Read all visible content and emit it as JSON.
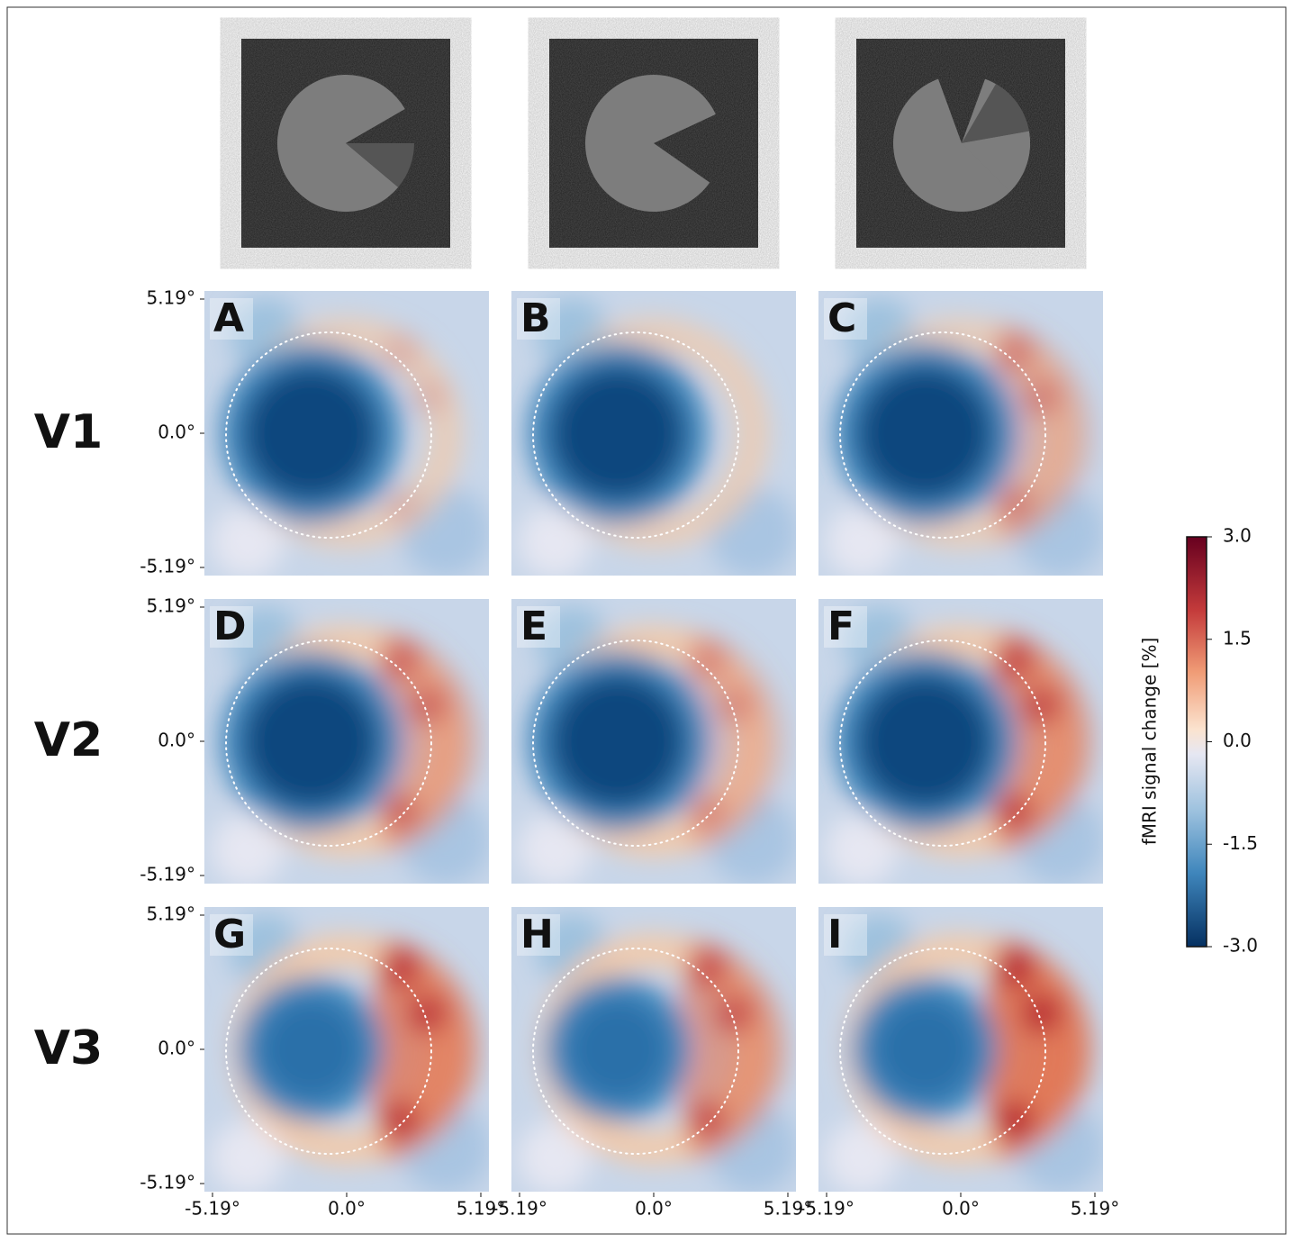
{
  "chart_data": {
    "type": "heatmap",
    "row_labels": [
      "V1",
      "V2",
      "V3"
    ],
    "panels": [
      "A",
      "B",
      "C",
      "D",
      "E",
      "F",
      "G",
      "H",
      "I"
    ],
    "xlim": [
      -5.19,
      5.19
    ],
    "ylim": [
      -5.19,
      5.19
    ],
    "xticks": [
      {
        "value": -5.19,
        "label": "-5.19°"
      },
      {
        "value": 0,
        "label": "0.0°"
      },
      {
        "value": 5.19,
        "label": "5.19°"
      }
    ],
    "yticks": [
      {
        "value": -5.19,
        "label": "-5.19°"
      },
      {
        "value": 0,
        "label": "0.0°"
      },
      {
        "value": 5.19,
        "label": "5.19°"
      }
    ],
    "colorbar": {
      "label": "fMRI signal change [%]",
      "lim": [
        -3,
        3
      ],
      "colormap": "RdBu_r",
      "ticks": [
        {
          "value": 3,
          "label": "3.0"
        },
        {
          "value": 1.5,
          "label": "1.5"
        },
        {
          "value": 0,
          "label": "0.0"
        },
        {
          "value": -1.5,
          "label": "-1.5"
        },
        {
          "value": -3,
          "label": "-3.0"
        }
      ]
    }
  }
}
